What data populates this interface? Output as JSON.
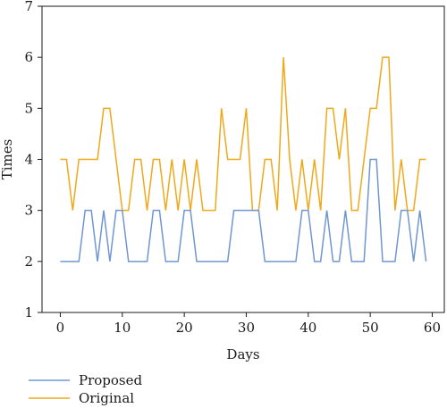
{
  "chart_data": {
    "type": "line",
    "title": "",
    "xlabel": "Days",
    "ylabel": "Times",
    "xlim": [
      -2.95,
      61.95
    ],
    "ylim": [
      1,
      7
    ],
    "xticks": [
      0,
      10,
      20,
      30,
      40,
      50,
      60
    ],
    "yticks": [
      1,
      2,
      3,
      4,
      5,
      6,
      7
    ],
    "grid": false,
    "legend_position": "bottom-left",
    "x": [
      0,
      1,
      2,
      3,
      4,
      5,
      6,
      7,
      8,
      9,
      10,
      11,
      12,
      13,
      14,
      15,
      16,
      17,
      18,
      19,
      20,
      21,
      22,
      23,
      24,
      25,
      26,
      27,
      28,
      29,
      30,
      31,
      32,
      33,
      34,
      35,
      36,
      37,
      38,
      39,
      40,
      41,
      42,
      43,
      44,
      45,
      46,
      47,
      48,
      49,
      50,
      51,
      52,
      53,
      54,
      55,
      56,
      57,
      58,
      59
    ],
    "series": [
      {
        "name": "Proposed",
        "color": "#7096d1",
        "values": [
          2,
          2,
          2,
          2,
          3,
          3,
          2,
          3,
          2,
          3,
          3,
          2,
          2,
          2,
          2,
          3,
          3,
          2,
          2,
          2,
          3,
          3,
          2,
          2,
          2,
          2,
          2,
          2,
          3,
          3,
          3,
          3,
          3,
          2,
          2,
          2,
          2,
          2,
          2,
          3,
          3,
          2,
          2,
          3,
          2,
          2,
          3,
          2,
          2,
          2,
          4,
          4,
          2,
          2,
          2,
          3,
          3,
          2,
          3,
          2
        ]
      },
      {
        "name": "Original",
        "color": "#f0a81b",
        "values": [
          4,
          4,
          3,
          4,
          4,
          4,
          4,
          5,
          5,
          4,
          3,
          3,
          4,
          4,
          3,
          4,
          4,
          3,
          4,
          3,
          4,
          3,
          4,
          3,
          3,
          3,
          5,
          4,
          4,
          4,
          5,
          3,
          3,
          4,
          4,
          3,
          6,
          4,
          3,
          4,
          3,
          4,
          3,
          5,
          5,
          4,
          5,
          3,
          3,
          4,
          5,
          5,
          6,
          6,
          3,
          4,
          3,
          3,
          4,
          4
        ]
      }
    ]
  }
}
